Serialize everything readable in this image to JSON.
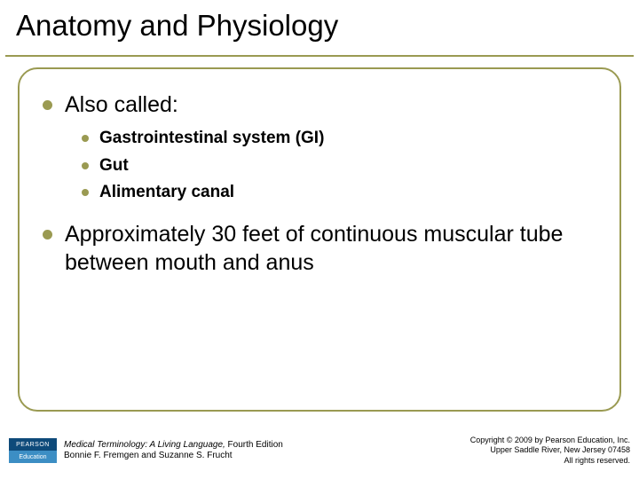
{
  "slide": {
    "title": "Anatomy and Physiology",
    "background_color": "#ffffff",
    "title_fontsize": 33,
    "title_color": "#000000",
    "underline_color": "#9a9a52",
    "box_border_color": "#9a9a52",
    "box_border_radius": 22,
    "bullets": [
      {
        "text": "Also called:",
        "subitems": [
          "Gastrointestinal system (GI)",
          "Gut",
          "Alimentary canal"
        ]
      },
      {
        "text": "Approximately 30 feet of continuous muscular tube between mouth and anus",
        "subitems": []
      }
    ],
    "bullet_color": "#9a9a52",
    "body_fontsize": 25,
    "sub_fontsize": 19,
    "sub_bold": true
  },
  "footer": {
    "logo_top": "PEARSON",
    "logo_bottom": "Education",
    "logo_top_bg": "#0e4a7a",
    "logo_bottom_bg": "#3c8ec4",
    "book_title": "Medical Terminology: A Living Language,",
    "book_edition": " Fourth Edition",
    "authors": "Bonnie F. Fremgen and Suzanne S. Frucht",
    "copyright_line1": "Copyright © 2009 by Pearson Education, Inc.",
    "copyright_line2": "Upper Saddle River, New Jersey 07458",
    "copyright_line3": "All rights reserved.",
    "font_size": 10
  }
}
